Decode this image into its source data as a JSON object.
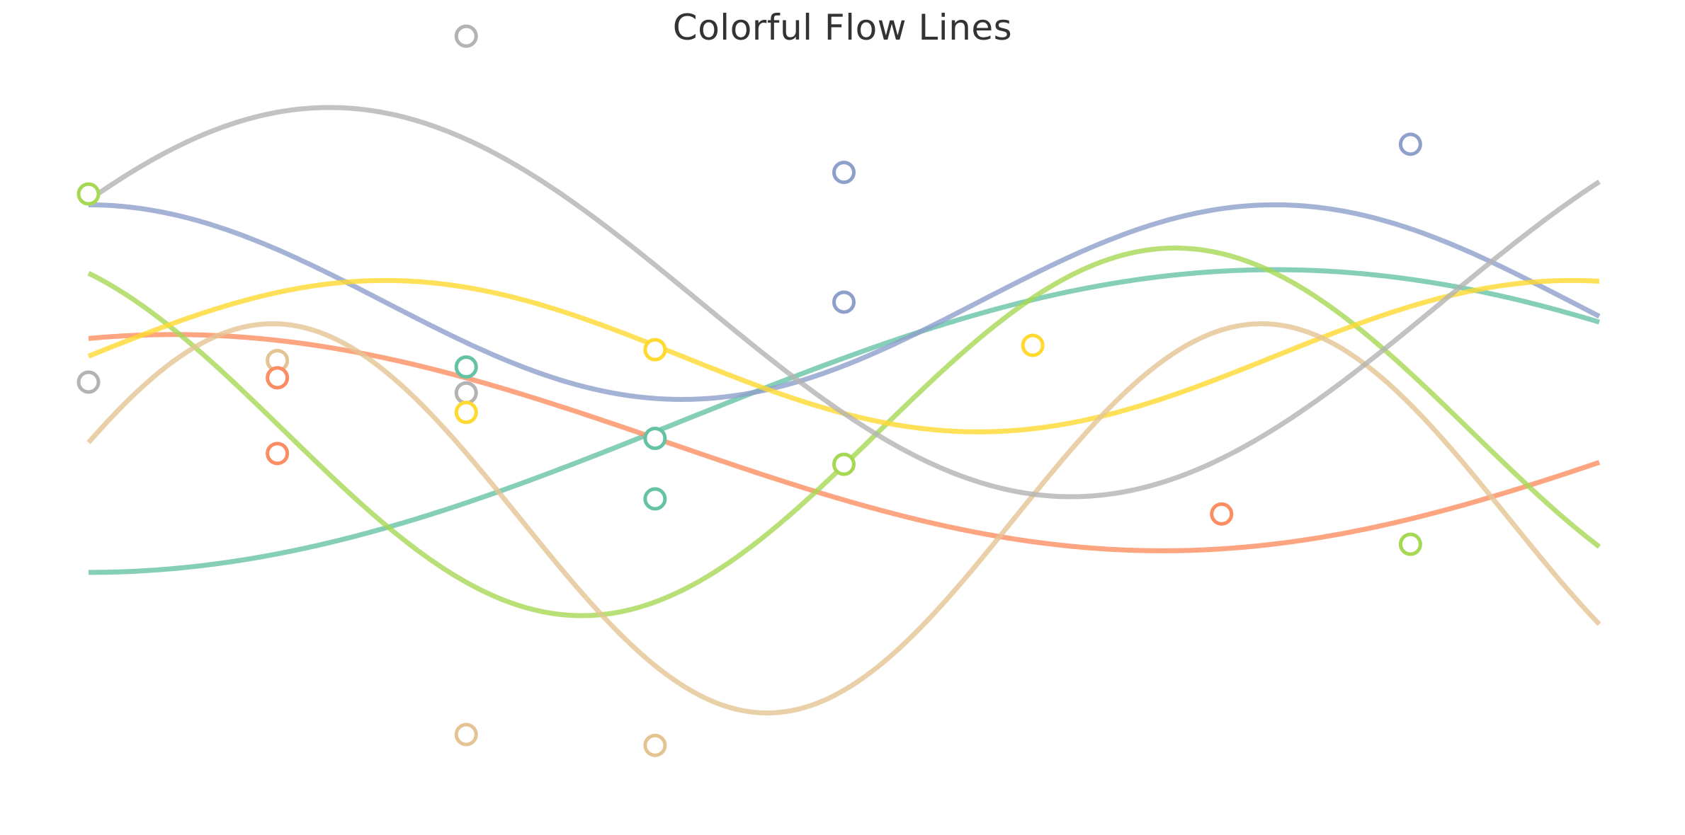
{
  "chart_data": {
    "type": "line",
    "title": "Colorful Flow Lines",
    "xlabel": "",
    "ylabel": "",
    "xlim": [
      0,
      8
    ],
    "ylim": [
      -1.8,
      1.8
    ],
    "grid": false,
    "legend": "none",
    "series": [
      {
        "color": "#66c2a5",
        "amp": 0.7,
        "freq": 0.5,
        "phase": -1.5708,
        "offset": 0.0
      },
      {
        "color": "#fc8d62",
        "amp": 0.5,
        "freq": 0.6,
        "phase": 1.3,
        "offset": -0.1
      },
      {
        "color": "#8da0cb",
        "amp": 0.45,
        "freq": 1.0,
        "phase": 1.5708,
        "offset": 0.55
      },
      {
        "color": "#a6d854",
        "amp": 0.85,
        "freq": 1.0,
        "phase": 2.1,
        "offset": -0.05
      },
      {
        "color": "#ffd92f",
        "amp": 0.35,
        "freq": 1.0,
        "phase": 0.0,
        "offset": 0.3
      },
      {
        "color": "#e5c494",
        "amp": 0.9,
        "freq": 1.2,
        "phase": 0.4,
        "offset": -0.45
      },
      {
        "color": "#b3b3b3",
        "amp": 0.9,
        "freq": 0.8,
        "phase": 0.55,
        "offset": 0.55
      }
    ],
    "points": [
      {
        "x": 0.0,
        "y": 1.05,
        "color": "#a6d854"
      },
      {
        "x": 0.0,
        "y": 0.18,
        "color": "#b3b3b3"
      },
      {
        "x": 1.0,
        "y": 0.28,
        "color": "#e5c494"
      },
      {
        "x": 1.0,
        "y": 0.2,
        "color": "#fc8d62"
      },
      {
        "x": 1.0,
        "y": -0.15,
        "color": "#fc8d62"
      },
      {
        "x": 2.0,
        "y": 1.78,
        "color": "#b3b3b3"
      },
      {
        "x": 2.0,
        "y": 0.25,
        "color": "#66c2a5"
      },
      {
        "x": 2.0,
        "y": 0.13,
        "color": "#b3b3b3"
      },
      {
        "x": 2.0,
        "y": 0.04,
        "color": "#ffd92f"
      },
      {
        "x": 2.0,
        "y": -1.45,
        "color": "#e5c494"
      },
      {
        "x": 3.0,
        "y": 0.33,
        "color": "#ffd92f"
      },
      {
        "x": 3.0,
        "y": -0.08,
        "color": "#66c2a5"
      },
      {
        "x": 3.0,
        "y": -0.36,
        "color": "#66c2a5"
      },
      {
        "x": 3.0,
        "y": -1.5,
        "color": "#e5c494"
      },
      {
        "x": 4.0,
        "y": 1.15,
        "color": "#8da0cb"
      },
      {
        "x": 4.0,
        "y": 0.55,
        "color": "#8da0cb"
      },
      {
        "x": 4.0,
        "y": -0.2,
        "color": "#a6d854"
      },
      {
        "x": 5.0,
        "y": 0.35,
        "color": "#ffd92f"
      },
      {
        "x": 6.0,
        "y": -0.43,
        "color": "#fc8d62"
      },
      {
        "x": 7.0,
        "y": 1.28,
        "color": "#8da0cb"
      },
      {
        "x": 7.0,
        "y": -0.57,
        "color": "#a6d854"
      }
    ]
  }
}
